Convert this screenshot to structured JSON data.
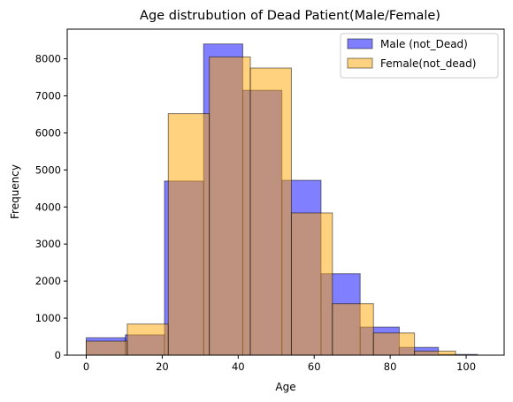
{
  "chart_data": {
    "type": "bar",
    "subtype": "overlaid-histogram",
    "title": "Age distrubution of Dead Patient(Male/Female)",
    "xlabel": "Age",
    "ylabel": "Frequency",
    "xlim": [
      -5,
      110
    ],
    "ylim": [
      0,
      8800
    ],
    "xticks": [
      0,
      20,
      40,
      60,
      80,
      100
    ],
    "yticks": [
      0,
      1000,
      2000,
      3000,
      4000,
      5000,
      6000,
      7000,
      8000
    ],
    "grid": false,
    "legend_position": "top-right",
    "series": [
      {
        "name": "Male (not_Dead)",
        "color": "#0000ff",
        "alpha": 0.5,
        "bins": [
          {
            "start": 0,
            "end": 10.3,
            "value": 470
          },
          {
            "start": 10.3,
            "end": 20.6,
            "value": 550
          },
          {
            "start": 20.6,
            "end": 30.9,
            "value": 4700
          },
          {
            "start": 30.9,
            "end": 41.2,
            "value": 8400
          },
          {
            "start": 41.2,
            "end": 51.5,
            "value": 7150
          },
          {
            "start": 51.5,
            "end": 61.8,
            "value": 4720
          },
          {
            "start": 61.8,
            "end": 72.1,
            "value": 2200
          },
          {
            "start": 72.1,
            "end": 82.4,
            "value": 760
          },
          {
            "start": 82.4,
            "end": 92.7,
            "value": 210
          },
          {
            "start": 92.7,
            "end": 103,
            "value": 20
          }
        ]
      },
      {
        "name": "Female(not_dead)",
        "color": "#ffa500",
        "alpha": 0.5,
        "bins": [
          {
            "start": 0,
            "end": 10.8,
            "value": 380
          },
          {
            "start": 10.8,
            "end": 21.6,
            "value": 840
          },
          {
            "start": 21.6,
            "end": 32.4,
            "value": 6520
          },
          {
            "start": 32.4,
            "end": 43.2,
            "value": 8050
          },
          {
            "start": 43.2,
            "end": 54,
            "value": 7750
          },
          {
            "start": 54,
            "end": 64.8,
            "value": 3840
          },
          {
            "start": 64.8,
            "end": 75.6,
            "value": 1390
          },
          {
            "start": 75.6,
            "end": 86.4,
            "value": 600
          },
          {
            "start": 86.4,
            "end": 97.2,
            "value": 110
          },
          {
            "start": 97.2,
            "end": 108,
            "value": 0
          }
        ]
      }
    ]
  }
}
